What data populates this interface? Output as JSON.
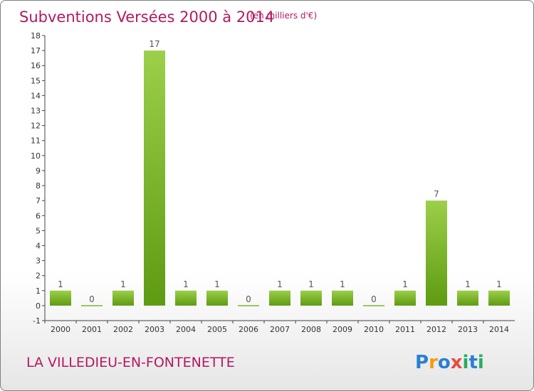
{
  "chart_data": {
    "type": "bar",
    "title": "Subventions Versées 2000 à 2014",
    "subtitle": "(en milliers d'€)",
    "categories": [
      "2000",
      "2001",
      "2002",
      "2003",
      "2004",
      "2005",
      "2006",
      "2007",
      "2008",
      "2009",
      "2010",
      "2011",
      "2012",
      "2013",
      "2014"
    ],
    "values": [
      1,
      0,
      1,
      17,
      1,
      1,
      0,
      1,
      1,
      1,
      0,
      1,
      7,
      1,
      1
    ],
    "data_labels": [
      "1",
      "0",
      "1",
      "17",
      "1",
      "1",
      "0",
      "1",
      "1",
      "1",
      "0",
      "1",
      "7",
      "1",
      "1"
    ],
    "yticks": [
      -1,
      0,
      1,
      2,
      3,
      4,
      5,
      6,
      7,
      8,
      9,
      10,
      11,
      12,
      13,
      14,
      15,
      16,
      17,
      18
    ],
    "ylim": [
      -1,
      18
    ],
    "xlabel": "",
    "ylabel": "",
    "grid": false,
    "bar_color_light": "#9ccf4a",
    "bar_color_dark": "#5e9a12",
    "title_color": "#b3195f"
  },
  "footer": {
    "place_name": "LA VILLEDIEU-EN-FONTENETTE",
    "place_color": "#b3195f",
    "logo_text": "Proxiti",
    "logo_letters": [
      "P",
      "r",
      "o",
      "x",
      "i",
      "t",
      "i"
    ],
    "logo_colors": [
      "#2a7fd4",
      "#f39c12",
      "#2a7fd4",
      "#e74c3c",
      "#27ae60",
      "#2a7fd4",
      "#27ae60"
    ]
  }
}
